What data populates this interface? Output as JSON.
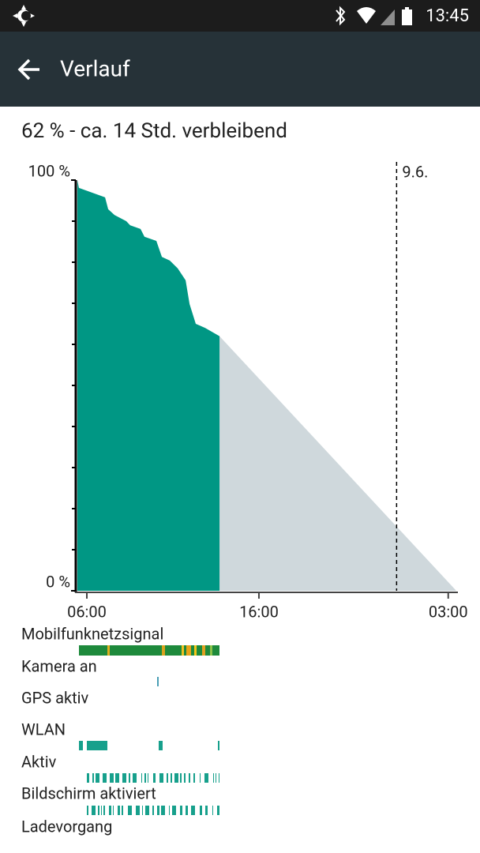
{
  "status_bar": {
    "time": "13:45"
  },
  "toolbar": {
    "title": "Verlauf"
  },
  "summary": "62 % - ca. 14 Std. verbleibend",
  "chart_data": {
    "type": "area",
    "x": [
      5.45,
      5.54,
      6.46,
      7.06,
      7.24,
      7.61,
      8.29,
      8.52,
      9.12,
      9.35,
      10.04,
      10.36,
      10.82,
      11.28,
      11.74,
      11.97,
      12.33,
      12.88,
      13.71
    ],
    "values": [
      100,
      98.1,
      96.7,
      95.8,
      92.9,
      91.5,
      90,
      89,
      88.1,
      86.2,
      85.2,
      81.3,
      80.4,
      78.5,
      75.6,
      69.8,
      65,
      64,
      62
    ],
    "color": "#009784",
    "projection": {
      "x": [
        13.71,
        27.47
      ],
      "values": [
        62,
        0
      ],
      "color": "#cfd8dc"
    },
    "xlim": [
      5.45,
      27.47
    ],
    "ylim": [
      0,
      100
    ],
    "xticks": [
      {
        "value": 6,
        "label": "06:00"
      },
      {
        "value": 16,
        "label": "16:00"
      },
      {
        "value": 27,
        "label": "03:00"
      }
    ],
    "yticks": [
      {
        "value": 0,
        "label": "0 %"
      },
      {
        "value": 100,
        "label": "100 %"
      }
    ],
    "yticks_minor": [
      10,
      20,
      30,
      40,
      50,
      60,
      70,
      80,
      90
    ],
    "day_marker": {
      "value": 24,
      "label": "9.6."
    }
  },
  "rows": [
    "Mobilfunknetzsignal",
    "Kamera an",
    "GPS aktiv",
    "WLAN",
    "Aktiv",
    "Bildschirm aktiviert",
    "Ladevorgang"
  ]
}
